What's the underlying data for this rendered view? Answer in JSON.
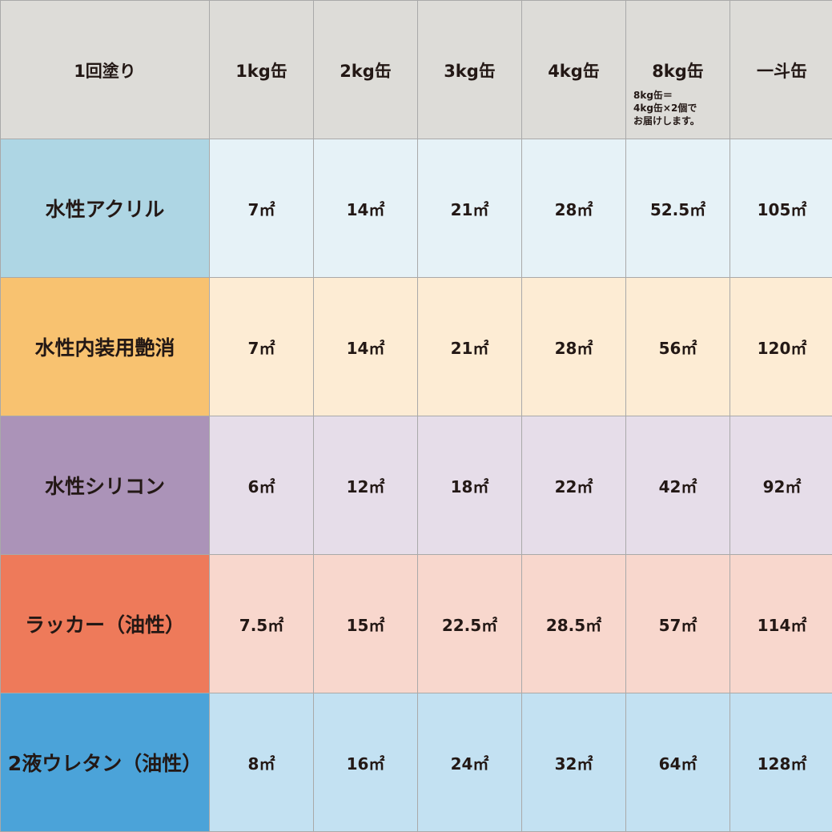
{
  "header": {
    "corner": "1回塗り",
    "columns": [
      "1kg缶",
      "2kg缶",
      "3kg缶",
      "4kg缶",
      "8kg缶",
      "一斗缶"
    ],
    "note_8kg": "8kg缶＝\n4kg缶×2個で\nお届けします。"
  },
  "rows": [
    {
      "label": "水性アクリル",
      "label_color": "#aed6e4",
      "cell_color": "#e6f2f7",
      "values": [
        "7㎡",
        "14㎡",
        "21㎡",
        "28㎡",
        "52.5㎡",
        "105㎡"
      ]
    },
    {
      "label": "水性内装用艶消",
      "label_color": "#f8c270",
      "cell_color": "#fdecd4",
      "values": [
        "7㎡",
        "14㎡",
        "21㎡",
        "28㎡",
        "56㎡",
        "120㎡"
      ]
    },
    {
      "label": "水性シリコン",
      "label_color": "#ab93b8",
      "cell_color": "#e6dde9",
      "values": [
        "6㎡",
        "12㎡",
        "18㎡",
        "22㎡",
        "42㎡",
        "92㎡"
      ]
    },
    {
      "label": "ラッカー（油性）",
      "label_color": "#ee7a5a",
      "cell_color": "#f8d7cd",
      "values": [
        "7.5㎡",
        "15㎡",
        "22.5㎡",
        "28.5㎡",
        "57㎡",
        "114㎡"
      ]
    },
    {
      "label": "2液ウレタン（油性）",
      "label_color": "#4ba3d9",
      "cell_color": "#c3e1f2",
      "values": [
        "8㎡",
        "16㎡",
        "24㎡",
        "32㎡",
        "64㎡",
        "128㎡"
      ]
    }
  ]
}
